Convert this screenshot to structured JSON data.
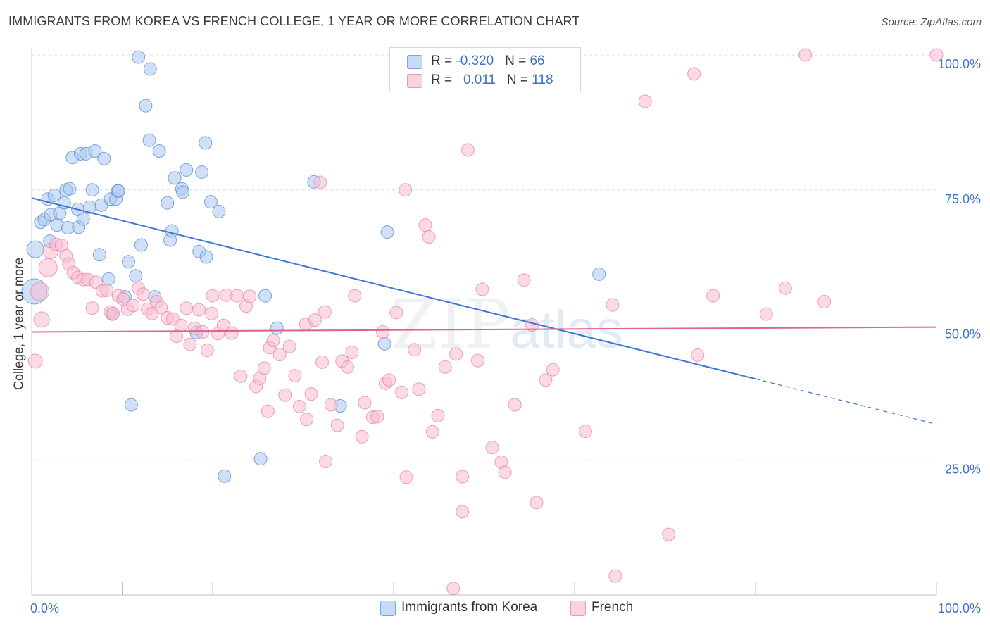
{
  "header": {
    "title": "IMMIGRANTS FROM KOREA VS FRENCH COLLEGE, 1 YEAR OR MORE CORRELATION CHART",
    "source": "Source: ZipAtlas.com"
  },
  "watermark": {
    "zip": "ZIP",
    "atlas": "atlas"
  },
  "legend": {
    "rows": [
      {
        "r_label": "R = ",
        "r_value": "-0.320",
        "n_label": "N = ",
        "n_value": "66",
        "color": "#a9c8f0"
      },
      {
        "r_label": "R = ",
        "r_value": "0.011",
        "n_label": "N = ",
        "n_value": "118",
        "color": "#f7bccf"
      }
    ]
  },
  "bottom_legend": [
    {
      "label": "Immigrants from Korea",
      "color": "#a9c8f0"
    },
    {
      "label": "French",
      "color": "#f7bccf"
    }
  ],
  "chart_data": {
    "type": "scatter",
    "title": "IMMIGRANTS FROM KOREA VS FRENCH COLLEGE, 1 YEAR OR MORE CORRELATION CHART",
    "xlabel": "",
    "ylabel": "College, 1 year or more",
    "xlim": [
      0,
      100
    ],
    "ylim": [
      0,
      100
    ],
    "x_tick_labels": [
      "0.0%",
      "100.0%"
    ],
    "y_tick_labels": [
      "25.0%",
      "50.0%",
      "75.0%",
      "100.0%"
    ],
    "y_ticks": [
      25,
      50,
      75,
      100
    ],
    "grid": true,
    "legend_position": "top-center",
    "series": [
      {
        "name": "Immigrants from Korea",
        "color": "#5b8fd6",
        "fill": "#a9c8f0",
        "trend": {
          "x0": 0,
          "y0": 73.5,
          "x1": 80,
          "y1": 40,
          "dashed_to_x": 100,
          "dashed_to_y": 31.6,
          "color": "#3a78d0"
        },
        "points": [
          [
            0.3,
            56.2,
            18
          ],
          [
            0.4,
            64,
            12
          ],
          [
            1,
            69,
            9
          ],
          [
            1.4,
            69.5,
            9
          ],
          [
            1.8,
            73.3,
            9
          ],
          [
            2,
            65.5,
            9
          ],
          [
            2.1,
            70.4,
            9
          ],
          [
            2.5,
            74,
            9
          ],
          [
            2.8,
            68.5,
            9
          ],
          [
            3.1,
            70.7,
            9
          ],
          [
            3.6,
            72.6,
            9
          ],
          [
            3.8,
            75,
            9
          ],
          [
            4,
            68,
            9
          ],
          [
            4.2,
            75.2,
            9
          ],
          [
            4.5,
            81,
            9
          ],
          [
            5.1,
            71.4,
            9
          ],
          [
            5.2,
            68.1,
            9
          ],
          [
            5.4,
            81.7,
            9
          ],
          [
            5.7,
            69.6,
            9
          ],
          [
            6,
            81.7,
            9
          ],
          [
            6.4,
            71.8,
            9
          ],
          [
            6.7,
            75,
            9
          ],
          [
            7,
            82.2,
            9
          ],
          [
            7.5,
            63,
            9
          ],
          [
            7.7,
            72.2,
            9
          ],
          [
            8,
            80.8,
            9
          ],
          [
            8.5,
            58.5,
            9
          ],
          [
            8.7,
            73.3,
            9
          ],
          [
            8.9,
            52,
            9
          ],
          [
            9.3,
            73.3,
            9
          ],
          [
            9.5,
            74.8,
            9
          ],
          [
            9.6,
            74.8,
            9
          ],
          [
            10.3,
            55.2,
            9
          ],
          [
            10.7,
            61.7,
            9
          ],
          [
            11,
            35.2,
            9
          ],
          [
            11.5,
            59.1,
            9
          ],
          [
            11.8,
            99.6,
            9
          ],
          [
            12.1,
            64.8,
            9
          ],
          [
            12.6,
            90.6,
            9
          ],
          [
            13,
            84.2,
            9
          ],
          [
            13.1,
            97.4,
            9
          ],
          [
            13.6,
            55.2,
            9
          ],
          [
            14.1,
            82.2,
            9
          ],
          [
            15,
            72.6,
            9
          ],
          [
            15.3,
            65.7,
            9
          ],
          [
            15.5,
            67.4,
            9
          ],
          [
            15.8,
            77.2,
            9
          ],
          [
            16.6,
            75.2,
            9
          ],
          [
            16.7,
            74.6,
            9
          ],
          [
            17.1,
            78.7,
            9
          ],
          [
            18.2,
            48.6,
            9
          ],
          [
            18.5,
            63.6,
            9
          ],
          [
            18.8,
            78.3,
            9
          ],
          [
            19.2,
            83.7,
            9
          ],
          [
            19.3,
            62.6,
            9
          ],
          [
            19.8,
            72.8,
            9
          ],
          [
            20.7,
            71,
            9
          ],
          [
            21.3,
            22,
            9
          ],
          [
            25.3,
            25.2,
            9
          ],
          [
            25.8,
            55.4,
            9
          ],
          [
            27.1,
            49.4,
            9
          ],
          [
            31.2,
            76.5,
            9
          ],
          [
            34.1,
            35,
            9
          ],
          [
            39,
            46.5,
            9
          ],
          [
            39.3,
            67.2,
            9
          ],
          [
            62.7,
            59.4,
            9
          ]
        ]
      },
      {
        "name": "French",
        "color": "#e98aa8",
        "fill": "#f7bccf",
        "trend": {
          "x0": 0,
          "y0": 48.7,
          "x1": 100,
          "y1": 49.6,
          "color": "#e0608c"
        },
        "points": [
          [
            0.4,
            43.3,
            10
          ],
          [
            0.9,
            56.2,
            13
          ],
          [
            1.1,
            51,
            11
          ],
          [
            1.8,
            60.6,
            13
          ],
          [
            2.1,
            63.7,
            11
          ],
          [
            2.7,
            64.9,
            9
          ],
          [
            3.3,
            64.7,
            9
          ],
          [
            3.8,
            62.8,
            9
          ],
          [
            4.1,
            61.3,
            9
          ],
          [
            4.6,
            59.7,
            9
          ],
          [
            5.1,
            58.8,
            9
          ],
          [
            5.7,
            58.4,
            9
          ],
          [
            6.2,
            58.4,
            9
          ],
          [
            6.7,
            53.1,
            9
          ],
          [
            7.1,
            57.9,
            9
          ],
          [
            7.8,
            56.3,
            9
          ],
          [
            8.3,
            56.4,
            9
          ],
          [
            8.7,
            52.4,
            9
          ],
          [
            9,
            52.1,
            9
          ],
          [
            9.6,
            55.4,
            9
          ],
          [
            10.1,
            54.8,
            9
          ],
          [
            10.6,
            52.9,
            9
          ],
          [
            11.2,
            53.6,
            9
          ],
          [
            11.8,
            56.8,
            9
          ],
          [
            12.3,
            55.7,
            9
          ],
          [
            12.8,
            52.9,
            9
          ],
          [
            13.3,
            52.1,
            9
          ],
          [
            13.8,
            54.3,
            9
          ],
          [
            14.3,
            53.2,
            9
          ],
          [
            15,
            51.3,
            9
          ],
          [
            15.6,
            51.1,
            9
          ],
          [
            16,
            47.9,
            9
          ],
          [
            16.5,
            49.9,
            9
          ],
          [
            17.1,
            53.1,
            9
          ],
          [
            17.5,
            46.4,
            9
          ],
          [
            18,
            49.4,
            9
          ],
          [
            18.5,
            52.8,
            9
          ],
          [
            18.9,
            48.7,
            9
          ],
          [
            19.4,
            45.3,
            9
          ],
          [
            19.9,
            52.1,
            9
          ],
          [
            20,
            55.4,
            9
          ],
          [
            20.6,
            48.4,
            9
          ],
          [
            21.2,
            49.9,
            9
          ],
          [
            21.5,
            55.5,
            9
          ],
          [
            22.1,
            48.5,
            9
          ],
          [
            22.7,
            55.4,
            9
          ],
          [
            23.1,
            40.5,
            9
          ],
          [
            23.7,
            53.5,
            9
          ],
          [
            24.1,
            55.3,
            9
          ],
          [
            24.8,
            38.6,
            9
          ],
          [
            25.2,
            40.1,
            9
          ],
          [
            25.7,
            42,
            9
          ],
          [
            26.1,
            34,
            9
          ],
          [
            26.3,
            45.8,
            9
          ],
          [
            26.7,
            47.1,
            9
          ],
          [
            27.4,
            44.5,
            9
          ],
          [
            28,
            37,
            9
          ],
          [
            28.5,
            46,
            9
          ],
          [
            29.1,
            40.6,
            9
          ],
          [
            29.6,
            34.9,
            9
          ],
          [
            30.3,
            50.1,
            9
          ],
          [
            30.4,
            32.5,
            9
          ],
          [
            30.9,
            37.2,
            9
          ],
          [
            31.3,
            50.9,
            9
          ],
          [
            31.9,
            76.4,
            9
          ],
          [
            32.1,
            43.1,
            9
          ],
          [
            32.4,
            52.4,
            9
          ],
          [
            32.5,
            24.7,
            9
          ],
          [
            33.1,
            35.2,
            9
          ],
          [
            33.8,
            31.4,
            9
          ],
          [
            34.3,
            43.3,
            9
          ],
          [
            34.9,
            42.2,
            9
          ],
          [
            35.4,
            44.9,
            9
          ],
          [
            35.7,
            55.4,
            9
          ],
          [
            36.5,
            29.3,
            9
          ],
          [
            36.8,
            35.6,
            9
          ],
          [
            37.7,
            32.9,
            9
          ],
          [
            38.2,
            33,
            9
          ],
          [
            38.8,
            48.7,
            9
          ],
          [
            39.1,
            39.2,
            9
          ],
          [
            39.5,
            39.8,
            9
          ],
          [
            40.3,
            52.3,
            9
          ],
          [
            40.9,
            37.5,
            9
          ],
          [
            41.4,
            21.8,
            9
          ],
          [
            41.3,
            75,
            9
          ],
          [
            42.3,
            45.4,
            9
          ],
          [
            42.8,
            38.1,
            9
          ],
          [
            43.5,
            68.5,
            9
          ],
          [
            43.9,
            66.3,
            9
          ],
          [
            44.3,
            30.2,
            9
          ],
          [
            44.9,
            33.2,
            9
          ],
          [
            45.7,
            42.2,
            9
          ],
          [
            46.6,
            1.2,
            9
          ],
          [
            46.9,
            44.6,
            9
          ],
          [
            47.6,
            15.4,
            9
          ],
          [
            47.6,
            21.9,
            9
          ],
          [
            48.2,
            82.4,
            9
          ],
          [
            49.3,
            43.4,
            9
          ],
          [
            49.8,
            56.6,
            9
          ],
          [
            50.9,
            27.3,
            9
          ],
          [
            51.9,
            24.6,
            9
          ],
          [
            52.3,
            22.7,
            9
          ],
          [
            53.4,
            35.2,
            9
          ],
          [
            54.4,
            58.3,
            9
          ],
          [
            55.3,
            50,
            9
          ],
          [
            55.8,
            17.1,
            9
          ],
          [
            56.8,
            39.8,
            9
          ],
          [
            57.6,
            41.7,
            9
          ],
          [
            58.9,
            100,
            9
          ],
          [
            61.2,
            30.3,
            9
          ],
          [
            64.2,
            53.7,
            9
          ],
          [
            64.5,
            3.5,
            9
          ],
          [
            67.8,
            91.4,
            9
          ],
          [
            70.4,
            11.2,
            9
          ],
          [
            73.2,
            96.5,
            9
          ],
          [
            73.6,
            44.4,
            9
          ],
          [
            75.3,
            55.4,
            9
          ],
          [
            81.2,
            52,
            9
          ],
          [
            83.3,
            56.8,
            9
          ],
          [
            85.5,
            100,
            9
          ],
          [
            87.6,
            54.3,
            9
          ],
          [
            100,
            100,
            9
          ]
        ]
      }
    ]
  }
}
